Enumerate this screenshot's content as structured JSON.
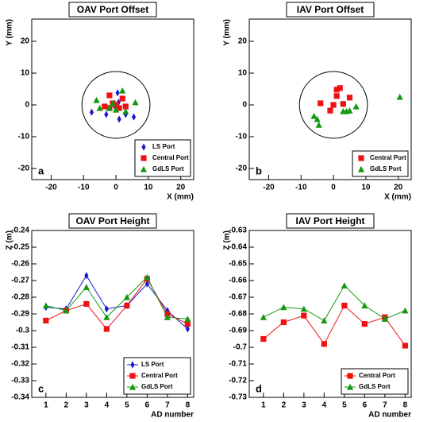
{
  "chart_data": [
    {
      "type": "scatter",
      "title": "OAV Port Offset",
      "label": "a",
      "x_label": "X (mm)",
      "y_label": "Y (mm)",
      "xlim": [
        -26,
        24
      ],
      "ylim": [
        -23.5,
        27
      ],
      "xticks": [
        -20,
        -10,
        0,
        10,
        20
      ],
      "yticks": [
        -20,
        -10,
        0,
        10,
        20
      ],
      "circle_radius": 10.5,
      "legend": "lower right",
      "series": [
        {
          "name": "LS Port",
          "color": "#1a1acc",
          "marker": "diamond",
          "x": [
            -7.5,
            -3,
            0.5,
            1.0,
            -0.5,
            3.0,
            5.5,
            0.8
          ],
          "values": [
            -2.3,
            -3.0,
            3.8,
            -4.5,
            -0.3,
            -3.0,
            -3.8,
            0.8
          ]
        },
        {
          "name": "Central Port",
          "color": "#ee1111",
          "marker": "square",
          "x": [
            -3.5,
            -2,
            -1,
            0,
            2,
            3,
            -2,
            1
          ],
          "values": [
            -0.5,
            3,
            0.5,
            0,
            2,
            -0.5,
            -1,
            -1
          ]
        },
        {
          "name": "GdLS Port",
          "color": "#119911",
          "marker": "triangle",
          "x": [
            -6,
            2,
            6,
            -2,
            3,
            0,
            -1,
            -5
          ],
          "values": [
            1.5,
            4.5,
            0.8,
            -1,
            -2,
            -1.5,
            0.5,
            -1
          ]
        }
      ]
    },
    {
      "type": "scatter",
      "title": "IAV Port Offset",
      "label": "b",
      "x_label": "X (mm)",
      "y_label": "Y (mm)",
      "xlim": [
        -26,
        24
      ],
      "ylim": [
        -23.5,
        27
      ],
      "xticks": [
        -20,
        -10,
        0,
        10,
        20
      ],
      "yticks": [
        -20,
        -10,
        0,
        10,
        20
      ],
      "circle_radius": 10.5,
      "legend": "lower right",
      "series": [
        {
          "name": "Central Port",
          "color": "#ee1111",
          "marker": "square",
          "x": [
            -4,
            0,
            1,
            2,
            3,
            -1,
            1,
            5
          ],
          "values": [
            0.5,
            0,
            4.8,
            5.3,
            0.3,
            -1.8,
            2.8,
            2.3
          ]
        },
        {
          "name": "GdLS Port",
          "color": "#119911",
          "marker": "triangle",
          "x": [
            -6,
            -5,
            -4.5,
            3,
            7,
            5,
            20.5,
            4
          ],
          "values": [
            -3.5,
            -4.5,
            -6.3,
            -2,
            -0.5,
            -1.8,
            2.5,
            -2
          ]
        }
      ]
    },
    {
      "type": "line",
      "title": "OAV Port Height",
      "label": "c",
      "x_label": "AD number",
      "y_label": "Z (m)",
      "x": [
        1,
        2,
        3,
        4,
        5,
        6,
        7,
        8
      ],
      "xlim": [
        0.3,
        8.3
      ],
      "xticks": [
        1,
        2,
        3,
        4,
        5,
        6,
        7,
        8
      ],
      "ylim": [
        -0.34,
        -0.24
      ],
      "yticks": [
        -0.34,
        -0.33,
        -0.32,
        -0.31,
        -0.3,
        -0.29,
        -0.28,
        -0.27,
        -0.26,
        -0.25,
        -0.24
      ],
      "legend": "lower right",
      "series": [
        {
          "name": "LS Port",
          "color": "#1a1acc",
          "marker": "diamond",
          "values": [
            -0.286,
            -0.287,
            -0.267,
            -0.287,
            -0.285,
            -0.272,
            -0.288,
            -0.299
          ]
        },
        {
          "name": "Central Port",
          "color": "#ee1111",
          "marker": "square",
          "values": [
            -0.294,
            -0.288,
            -0.284,
            -0.299,
            -0.285,
            -0.269,
            -0.29,
            -0.296
          ]
        },
        {
          "name": "GdLS Port",
          "color": "#119911",
          "marker": "triangle",
          "values": [
            -0.285,
            -0.288,
            -0.274,
            -0.292,
            -0.28,
            -0.268,
            -0.292,
            -0.293
          ]
        }
      ]
    },
    {
      "type": "line",
      "title": "IAV Port Height",
      "label": "d",
      "x_label": "AD number",
      "y_label": "Z (m)",
      "x": [
        1,
        2,
        3,
        4,
        5,
        6,
        7,
        8
      ],
      "xlim": [
        0.3,
        8.3
      ],
      "xticks": [
        1,
        2,
        3,
        4,
        5,
        6,
        7,
        8
      ],
      "ylim": [
        -0.73,
        -0.63
      ],
      "yticks": [
        -0.73,
        -0.72,
        -0.71,
        -0.7,
        -0.69,
        -0.68,
        -0.67,
        -0.66,
        -0.65,
        -0.64,
        -0.63
      ],
      "legend": "lower right",
      "series": [
        {
          "name": "Central Port",
          "color": "#ee1111",
          "marker": "square",
          "values": [
            -0.695,
            -0.685,
            -0.681,
            -0.698,
            -0.675,
            -0.686,
            -0.682,
            -0.699
          ]
        },
        {
          "name": "GdLS Port",
          "color": "#119911",
          "marker": "triangle",
          "values": [
            -0.682,
            -0.676,
            -0.677,
            -0.684,
            -0.663,
            -0.675,
            -0.683,
            -0.678
          ]
        }
      ]
    }
  ]
}
